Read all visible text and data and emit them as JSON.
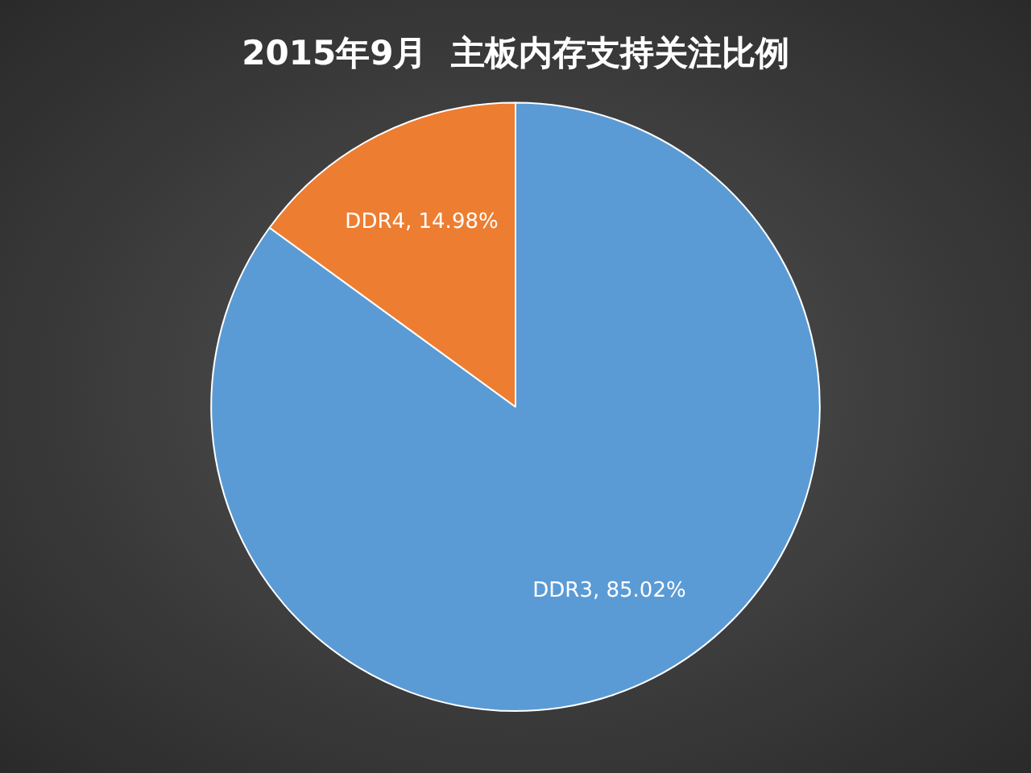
{
  "chart_data": {
    "type": "pie",
    "title": "2015年9月  主板内存支持关注比例",
    "categories": [
      "DDR3",
      "DDR4"
    ],
    "values": [
      85.02,
      14.98
    ],
    "colors": [
      "#5b9bd5",
      "#ed7d31"
    ],
    "value_labels": [
      "85.02%",
      "14.98%"
    ],
    "legend": false
  }
}
